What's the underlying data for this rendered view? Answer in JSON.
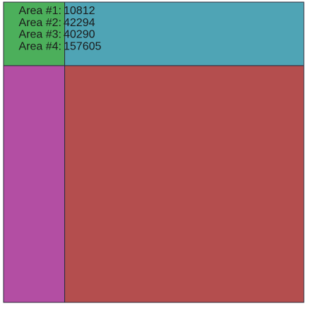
{
  "chart_data": {
    "type": "treemap",
    "areas": [
      {
        "label": "Area #1:",
        "value": 10812,
        "color": "#4caf5b"
      },
      {
        "label": "Area #2:",
        "value": 42294,
        "color": "#4fa4b5"
      },
      {
        "label": "Area #3:",
        "value": 40290,
        "color": "#b34ea3"
      },
      {
        "label": "Area #4:",
        "value": 157605,
        "color": "#b44e4e"
      }
    ]
  }
}
